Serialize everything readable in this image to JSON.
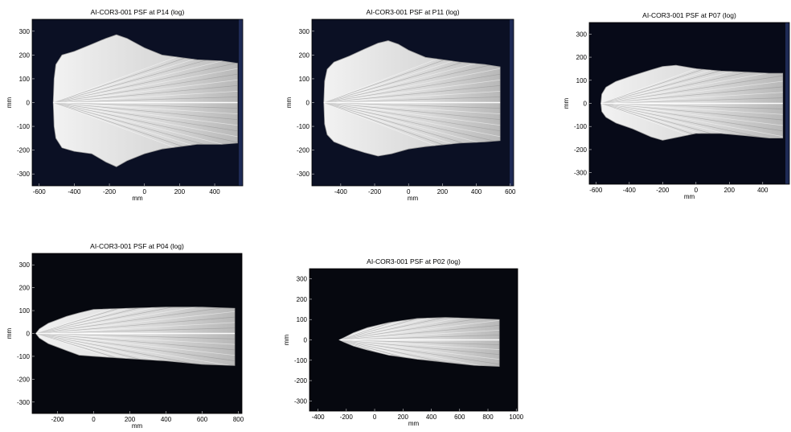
{
  "chart_data": [
    {
      "type": "heatmap",
      "title": "AI-COR3-001 PSF at P14 (log)",
      "xlabel": "mm",
      "ylabel": "mm",
      "xlim": [
        -640,
        560
      ],
      "ylim": [
        -350,
        350
      ],
      "xticks": [
        "-600",
        "-400",
        "-200",
        "0",
        "200",
        "400"
      ],
      "yticks": [
        "300",
        "200",
        "100",
        "0",
        "-100",
        "-200",
        "-300"
      ],
      "background": "#0b1024",
      "edge_strip": true,
      "psf_outline": {
        "upper": [
          [
            -520,
            0
          ],
          [
            -515,
            100
          ],
          [
            -505,
            160
          ],
          [
            -470,
            200
          ],
          [
            -400,
            215
          ],
          [
            -300,
            245
          ],
          [
            -220,
            270
          ],
          [
            -160,
            285
          ],
          [
            -100,
            270
          ],
          [
            0,
            230
          ],
          [
            100,
            200
          ],
          [
            300,
            180
          ],
          [
            440,
            175
          ],
          [
            530,
            165
          ]
        ],
        "lower": [
          [
            530,
            -170
          ],
          [
            440,
            -175
          ],
          [
            300,
            -175
          ],
          [
            100,
            -195
          ],
          [
            0,
            -215
          ],
          [
            -100,
            -245
          ],
          [
            -160,
            -270
          ],
          [
            -220,
            -250
          ],
          [
            -300,
            -215
          ],
          [
            -400,
            -205
          ],
          [
            -470,
            -190
          ],
          [
            -505,
            -150
          ],
          [
            -515,
            -100
          ]
        ]
      }
    },
    {
      "type": "heatmap",
      "title": "AI-COR3-001 PSF at P11 (log)",
      "xlabel": "mm",
      "ylabel": "mm",
      "xlim": [
        -570,
        620
      ],
      "ylim": [
        -350,
        350
      ],
      "xticks": [
        "-400",
        "-200",
        "0",
        "200",
        "400",
        "600"
      ],
      "yticks": [
        "300",
        "200",
        "100",
        "0",
        "-100",
        "-200",
        "-300"
      ],
      "background": "#0b1024",
      "edge_strip": true,
      "psf_outline": {
        "upper": [
          [
            -500,
            0
          ],
          [
            -495,
            90
          ],
          [
            -480,
            140
          ],
          [
            -440,
            170
          ],
          [
            -350,
            195
          ],
          [
            -260,
            225
          ],
          [
            -180,
            250
          ],
          [
            -120,
            260
          ],
          [
            -60,
            245
          ],
          [
            0,
            220
          ],
          [
            100,
            190
          ],
          [
            300,
            170
          ],
          [
            450,
            160
          ],
          [
            540,
            150
          ]
        ],
        "lower": [
          [
            540,
            -160
          ],
          [
            450,
            -165
          ],
          [
            300,
            -170
          ],
          [
            100,
            -185
          ],
          [
            0,
            -195
          ],
          [
            -100,
            -215
          ],
          [
            -180,
            -225
          ],
          [
            -260,
            -210
          ],
          [
            -350,
            -190
          ],
          [
            -440,
            -165
          ],
          [
            -480,
            -135
          ],
          [
            -495,
            -90
          ]
        ]
      }
    },
    {
      "type": "heatmap",
      "title": "AI-COR3-001 PSF at P07 (log)",
      "xlabel": "mm",
      "ylabel": "mm",
      "xlim": [
        -640,
        560
      ],
      "ylim": [
        -350,
        350
      ],
      "xticks": [
        "-600",
        "-400",
        "-200",
        "0",
        "200",
        "400"
      ],
      "yticks": [
        "300",
        "200",
        "100",
        "0",
        "-100",
        "-200",
        "-300"
      ],
      "background": "#070a18",
      "edge_strip": true,
      "psf_outline": {
        "upper": [
          [
            -570,
            0
          ],
          [
            -565,
            40
          ],
          [
            -540,
            70
          ],
          [
            -480,
            95
          ],
          [
            -380,
            120
          ],
          [
            -270,
            145
          ],
          [
            -200,
            160
          ],
          [
            -120,
            165
          ],
          [
            0,
            150
          ],
          [
            150,
            140
          ],
          [
            300,
            135
          ],
          [
            440,
            130
          ],
          [
            520,
            130
          ]
        ],
        "lower": [
          [
            520,
            -150
          ],
          [
            440,
            -150
          ],
          [
            300,
            -140
          ],
          [
            150,
            -130
          ],
          [
            0,
            -130
          ],
          [
            -100,
            -145
          ],
          [
            -200,
            -160
          ],
          [
            -270,
            -145
          ],
          [
            -380,
            -110
          ],
          [
            -480,
            -85
          ],
          [
            -540,
            -60
          ],
          [
            -565,
            -35
          ]
        ]
      }
    },
    {
      "type": "heatmap",
      "title": "AI-COR3-001 PSF at P04 (log)",
      "xlabel": "mm",
      "ylabel": "mm",
      "xlim": [
        -340,
        820
      ],
      "ylim": [
        -350,
        350
      ],
      "xticks": [
        "-200",
        "0",
        "200",
        "400",
        "600",
        "800"
      ],
      "yticks": [
        "300",
        "200",
        "100",
        "0",
        "-100",
        "-200",
        "-300"
      ],
      "background": "#06080f",
      "edge_strip": false,
      "psf_outline": {
        "upper": [
          [
            -320,
            0
          ],
          [
            -300,
            20
          ],
          [
            -250,
            45
          ],
          [
            -150,
            75
          ],
          [
            -80,
            90
          ],
          [
            0,
            105
          ],
          [
            200,
            110
          ],
          [
            400,
            115
          ],
          [
            600,
            115
          ],
          [
            780,
            110
          ]
        ],
        "lower": [
          [
            780,
            -140
          ],
          [
            600,
            -135
          ],
          [
            400,
            -120
          ],
          [
            200,
            -110
          ],
          [
            0,
            -100
          ],
          [
            -80,
            -95
          ],
          [
            -150,
            -75
          ],
          [
            -250,
            -45
          ],
          [
            -300,
            -20
          ]
        ]
      }
    },
    {
      "type": "heatmap",
      "title": "AI-COR3-001 PSF at P02 (log)",
      "xlabel": "mm",
      "ylabel": "mm",
      "xlim": [
        -460,
        1010
      ],
      "ylim": [
        -350,
        350
      ],
      "xticks": [
        "-400",
        "-200",
        "0",
        "200",
        "400",
        "600",
        "800",
        "1000"
      ],
      "yticks": [
        "300",
        "200",
        "100",
        "0",
        "-100",
        "-200",
        "-300"
      ],
      "background": "#06080f",
      "edge_strip": false,
      "psf_outline": {
        "upper": [
          [
            -250,
            0
          ],
          [
            -220,
            10
          ],
          [
            -150,
            35
          ],
          [
            -50,
            60
          ],
          [
            100,
            85
          ],
          [
            300,
            105
          ],
          [
            500,
            110
          ],
          [
            700,
            105
          ],
          [
            880,
            100
          ]
        ],
        "lower": [
          [
            880,
            -130
          ],
          [
            700,
            -125
          ],
          [
            500,
            -110
          ],
          [
            300,
            -95
          ],
          [
            100,
            -75
          ],
          [
            -50,
            -50
          ],
          [
            -150,
            -30
          ],
          [
            -220,
            -10
          ]
        ]
      }
    }
  ]
}
